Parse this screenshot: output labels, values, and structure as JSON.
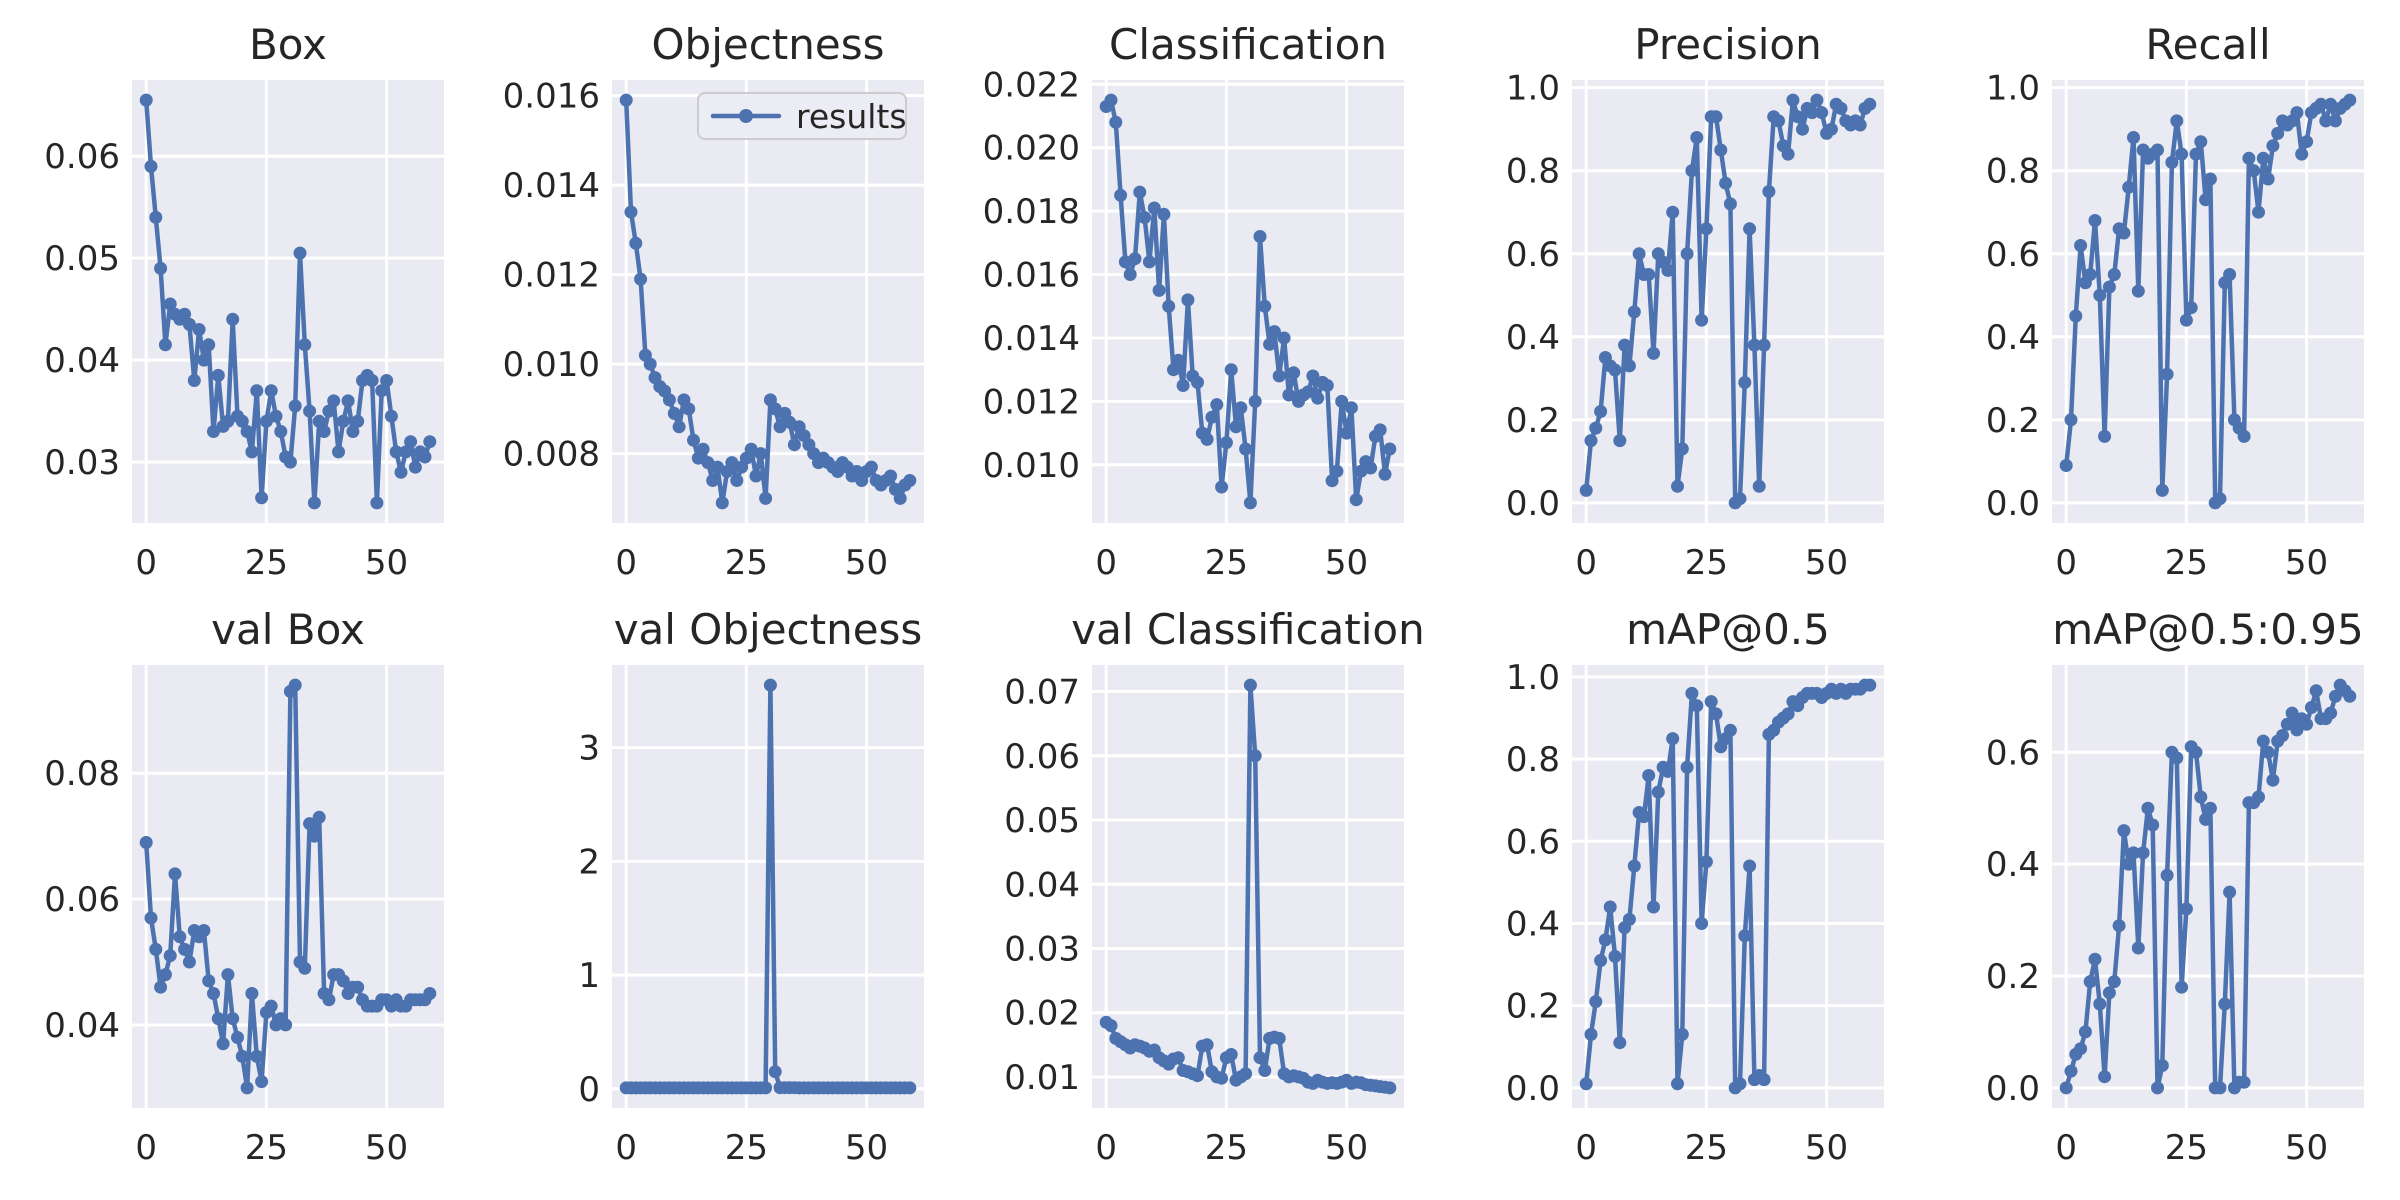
{
  "figure": {
    "background": "#ffffff",
    "plot_bg": "#eaeaf2",
    "grid_color": "#ffffff",
    "text_color": "#262626",
    "accent": "#4c72b0",
    "legend": {
      "label": "results",
      "bg": "#ececf4",
      "border": "#cccccc"
    }
  },
  "chart_data": [
    {
      "type": "line",
      "title": "Box",
      "legend_pos": null,
      "xticks": [
        0,
        25,
        50
      ],
      "xtick_labels": [
        "0",
        "25",
        "50"
      ],
      "yticks": [
        0.03,
        0.04,
        0.05,
        0.06
      ],
      "ytick_labels": [
        "0.03",
        "0.04",
        "0.05",
        "0.06"
      ],
      "xlim": [
        -2.95,
        61.95
      ],
      "values": [
        0.0655,
        0.059,
        0.054,
        0.049,
        0.0415,
        0.0455,
        0.0445,
        0.044,
        0.0445,
        0.0435,
        0.038,
        0.043,
        0.04,
        0.0415,
        0.033,
        0.0385,
        0.0335,
        0.034,
        0.044,
        0.0345,
        0.034,
        0.033,
        0.031,
        0.037,
        0.0265,
        0.034,
        0.037,
        0.0345,
        0.033,
        0.0305,
        0.03,
        0.0355,
        0.0505,
        0.0415,
        0.035,
        0.026,
        0.034,
        0.033,
        0.035,
        0.036,
        0.031,
        0.034,
        0.036,
        0.033,
        0.034,
        0.038,
        0.0385,
        0.038,
        0.026,
        0.037,
        0.038,
        0.0345,
        0.031,
        0.029,
        0.031,
        0.032,
        0.0295,
        0.031,
        0.0305,
        0.032
      ]
    },
    {
      "type": "line",
      "title": "Objectness",
      "legend_pos": "upper-right",
      "legend_label": "results",
      "xticks": [
        0,
        25,
        50
      ],
      "xtick_labels": [
        "0",
        "25",
        "50"
      ],
      "yticks": [
        0.008,
        0.01,
        0.012,
        0.014,
        0.016
      ],
      "ytick_labels": [
        "0.008",
        "0.010",
        "0.012",
        "0.014",
        "0.016"
      ],
      "xlim": [
        -2.95,
        61.95
      ],
      "values": [
        0.0159,
        0.0134,
        0.0127,
        0.0119,
        0.0102,
        0.01,
        0.0097,
        0.0095,
        0.0094,
        0.0092,
        0.0089,
        0.0086,
        0.0092,
        0.009,
        0.0083,
        0.0079,
        0.0081,
        0.0078,
        0.0074,
        0.0077,
        0.0069,
        0.0076,
        0.0078,
        0.0074,
        0.0077,
        0.0079,
        0.0081,
        0.0075,
        0.008,
        0.007,
        0.0092,
        0.009,
        0.0086,
        0.0089,
        0.0087,
        0.0082,
        0.0086,
        0.0084,
        0.0082,
        0.008,
        0.0078,
        0.0079,
        0.0078,
        0.0077,
        0.0076,
        0.0078,
        0.0077,
        0.0075,
        0.0076,
        0.0074,
        0.0076,
        0.0077,
        0.0074,
        0.0073,
        0.0074,
        0.0075,
        0.0072,
        0.007,
        0.0073,
        0.0074
      ]
    },
    {
      "type": "line",
      "title": "Classification",
      "legend_pos": null,
      "xticks": [
        0,
        25,
        50
      ],
      "xtick_labels": [
        "0",
        "25",
        "50"
      ],
      "yticks": [
        0.01,
        0.012,
        0.014,
        0.016,
        0.018,
        0.02,
        0.022
      ],
      "ytick_labels": [
        "0.010",
        "0.012",
        "0.014",
        "0.016",
        "0.018",
        "0.020",
        "0.022"
      ],
      "xlim": [
        -2.95,
        61.95
      ],
      "values": [
        0.0213,
        0.0215,
        0.0208,
        0.0185,
        0.0164,
        0.016,
        0.0165,
        0.0186,
        0.0178,
        0.0164,
        0.0181,
        0.0155,
        0.0179,
        0.015,
        0.013,
        0.0133,
        0.0125,
        0.0152,
        0.0128,
        0.0126,
        0.011,
        0.0108,
        0.0115,
        0.0119,
        0.0093,
        0.0107,
        0.013,
        0.0112,
        0.0118,
        0.0105,
        0.0088,
        0.012,
        0.0172,
        0.015,
        0.0138,
        0.0142,
        0.0128,
        0.014,
        0.0122,
        0.0129,
        0.012,
        0.0122,
        0.0123,
        0.0128,
        0.0121,
        0.0126,
        0.0125,
        0.0095,
        0.0098,
        0.012,
        0.011,
        0.0118,
        0.0089,
        0.0098,
        0.0101,
        0.0099,
        0.0109,
        0.0111,
        0.0097,
        0.0105
      ]
    },
    {
      "type": "line",
      "title": "Precision",
      "legend_pos": null,
      "xticks": [
        0,
        25,
        50
      ],
      "xtick_labels": [
        "0",
        "25",
        "50"
      ],
      "yticks": [
        0.0,
        0.2,
        0.4,
        0.6,
        0.8,
        1.0
      ],
      "ytick_labels": [
        "0.0",
        "0.2",
        "0.4",
        "0.6",
        "0.8",
        "1.0"
      ],
      "xlim": [
        -2.95,
        61.95
      ],
      "values": [
        0.03,
        0.15,
        0.18,
        0.22,
        0.35,
        0.33,
        0.32,
        0.15,
        0.38,
        0.33,
        0.46,
        0.6,
        0.55,
        0.55,
        0.36,
        0.6,
        0.58,
        0.56,
        0.7,
        0.04,
        0.13,
        0.6,
        0.8,
        0.88,
        0.44,
        0.66,
        0.93,
        0.93,
        0.85,
        0.77,
        0.72,
        0.0,
        0.01,
        0.29,
        0.66,
        0.38,
        0.04,
        0.38,
        0.75,
        0.93,
        0.92,
        0.86,
        0.84,
        0.97,
        0.93,
        0.9,
        0.95,
        0.94,
        0.97,
        0.94,
        0.89,
        0.9,
        0.96,
        0.95,
        0.92,
        0.91,
        0.92,
        0.91,
        0.95,
        0.96
      ]
    },
    {
      "type": "line",
      "title": "Recall",
      "legend_pos": null,
      "xticks": [
        0,
        25,
        50
      ],
      "xtick_labels": [
        "0",
        "25",
        "50"
      ],
      "yticks": [
        0.0,
        0.2,
        0.4,
        0.6,
        0.8,
        1.0
      ],
      "ytick_labels": [
        "0.0",
        "0.2",
        "0.4",
        "0.6",
        "0.8",
        "1.0"
      ],
      "xlim": [
        -2.95,
        61.95
      ],
      "values": [
        0.09,
        0.2,
        0.45,
        0.62,
        0.53,
        0.55,
        0.68,
        0.5,
        0.16,
        0.52,
        0.55,
        0.66,
        0.65,
        0.76,
        0.88,
        0.51,
        0.85,
        0.83,
        0.84,
        0.85,
        0.03,
        0.31,
        0.82,
        0.92,
        0.84,
        0.44,
        0.47,
        0.84,
        0.87,
        0.73,
        0.78,
        0.0,
        0.01,
        0.53,
        0.55,
        0.2,
        0.18,
        0.16,
        0.83,
        0.8,
        0.7,
        0.83,
        0.78,
        0.86,
        0.89,
        0.92,
        0.91,
        0.92,
        0.94,
        0.84,
        0.87,
        0.94,
        0.95,
        0.96,
        0.92,
        0.96,
        0.92,
        0.95,
        0.96,
        0.97
      ]
    },
    {
      "type": "line",
      "title": "val Box",
      "legend_pos": null,
      "xticks": [
        0,
        25,
        50
      ],
      "xtick_labels": [
        "0",
        "25",
        "50"
      ],
      "yticks": [
        0.04,
        0.06,
        0.08
      ],
      "ytick_labels": [
        "0.04",
        "0.06",
        "0.08"
      ],
      "xlim": [
        -2.95,
        61.95
      ],
      "values": [
        0.069,
        0.057,
        0.052,
        0.046,
        0.048,
        0.051,
        0.064,
        0.054,
        0.052,
        0.05,
        0.055,
        0.054,
        0.055,
        0.047,
        0.045,
        0.041,
        0.037,
        0.048,
        0.041,
        0.038,
        0.035,
        0.03,
        0.045,
        0.035,
        0.031,
        0.042,
        0.043,
        0.04,
        0.041,
        0.04,
        0.093,
        0.094,
        0.05,
        0.049,
        0.072,
        0.07,
        0.073,
        0.045,
        0.044,
        0.048,
        0.048,
        0.047,
        0.045,
        0.046,
        0.046,
        0.044,
        0.043,
        0.043,
        0.043,
        0.044,
        0.044,
        0.043,
        0.044,
        0.043,
        0.043,
        0.044,
        0.044,
        0.044,
        0.044,
        0.045
      ]
    },
    {
      "type": "line",
      "title": "val Objectness",
      "legend_pos": null,
      "xticks": [
        0,
        25,
        50
      ],
      "xtick_labels": [
        "0",
        "25",
        "50"
      ],
      "yticks": [
        0,
        1,
        2,
        3
      ],
      "ytick_labels": [
        "0",
        "1",
        "2",
        "3"
      ],
      "xlim": [
        -2.95,
        61.95
      ],
      "values": [
        0.008,
        0.008,
        0.008,
        0.008,
        0.008,
        0.008,
        0.008,
        0.008,
        0.008,
        0.008,
        0.008,
        0.008,
        0.008,
        0.008,
        0.008,
        0.008,
        0.008,
        0.008,
        0.008,
        0.008,
        0.008,
        0.008,
        0.008,
        0.008,
        0.008,
        0.008,
        0.008,
        0.008,
        0.008,
        0.008,
        3.55,
        0.15,
        0.009,
        0.009,
        0.009,
        0.009,
        0.008,
        0.008,
        0.008,
        0.008,
        0.008,
        0.008,
        0.008,
        0.008,
        0.008,
        0.008,
        0.008,
        0.008,
        0.008,
        0.008,
        0.008,
        0.008,
        0.008,
        0.008,
        0.008,
        0.008,
        0.008,
        0.008,
        0.008,
        0.008
      ]
    },
    {
      "type": "line",
      "title": "val Classification",
      "legend_pos": null,
      "xticks": [
        0,
        25,
        50
      ],
      "xtick_labels": [
        "0",
        "25",
        "50"
      ],
      "yticks": [
        0.01,
        0.02,
        0.03,
        0.04,
        0.05,
        0.06,
        0.07
      ],
      "ytick_labels": [
        "0.01",
        "0.02",
        "0.03",
        "0.04",
        "0.05",
        "0.06",
        "0.07"
      ],
      "xlim": [
        -2.95,
        61.95
      ],
      "values": [
        0.0185,
        0.018,
        0.016,
        0.0155,
        0.015,
        0.0145,
        0.015,
        0.0148,
        0.0145,
        0.014,
        0.0142,
        0.013,
        0.0125,
        0.012,
        0.0128,
        0.013,
        0.011,
        0.0108,
        0.0105,
        0.0102,
        0.0148,
        0.015,
        0.0108,
        0.01,
        0.0098,
        0.013,
        0.0135,
        0.0095,
        0.01,
        0.0105,
        0.071,
        0.06,
        0.013,
        0.011,
        0.016,
        0.0162,
        0.016,
        0.0105,
        0.01,
        0.0102,
        0.01,
        0.0098,
        0.0092,
        0.009,
        0.0095,
        0.0092,
        0.009,
        0.0091,
        0.009,
        0.0092,
        0.0095,
        0.009,
        0.0092,
        0.0091,
        0.0088,
        0.0087,
        0.0086,
        0.0085,
        0.0084,
        0.0083
      ]
    },
    {
      "type": "line",
      "title": "mAP@0.5",
      "legend_pos": null,
      "xticks": [
        0,
        25,
        50
      ],
      "xtick_labels": [
        "0",
        "25",
        "50"
      ],
      "yticks": [
        0.0,
        0.2,
        0.4,
        0.6,
        0.8,
        1.0
      ],
      "ytick_labels": [
        "0.0",
        "0.2",
        "0.4",
        "0.6",
        "0.8",
        "1.0"
      ],
      "xlim": [
        -2.95,
        61.95
      ],
      "values": [
        0.01,
        0.13,
        0.21,
        0.31,
        0.36,
        0.44,
        0.32,
        0.11,
        0.39,
        0.41,
        0.54,
        0.67,
        0.66,
        0.76,
        0.44,
        0.72,
        0.78,
        0.77,
        0.85,
        0.01,
        0.13,
        0.78,
        0.96,
        0.93,
        0.4,
        0.55,
        0.94,
        0.91,
        0.83,
        0.85,
        0.87,
        0.0,
        0.01,
        0.37,
        0.54,
        0.02,
        0.03,
        0.02,
        0.86,
        0.87,
        0.89,
        0.9,
        0.91,
        0.94,
        0.93,
        0.95,
        0.96,
        0.96,
        0.96,
        0.95,
        0.96,
        0.97,
        0.96,
        0.97,
        0.96,
        0.97,
        0.97,
        0.97,
        0.98,
        0.98
      ]
    },
    {
      "type": "line",
      "title": "mAP@0.5:0.95",
      "legend_pos": null,
      "xticks": [
        0,
        25,
        50
      ],
      "xtick_labels": [
        "0",
        "25",
        "50"
      ],
      "yticks": [
        0.0,
        0.2,
        0.4,
        0.6
      ],
      "ytick_labels": [
        "0.0",
        "0.2",
        "0.4",
        "0.6"
      ],
      "xlim": [
        -2.95,
        61.95
      ],
      "values": [
        0.0,
        0.03,
        0.06,
        0.07,
        0.1,
        0.19,
        0.23,
        0.15,
        0.02,
        0.17,
        0.19,
        0.29,
        0.46,
        0.4,
        0.42,
        0.25,
        0.42,
        0.5,
        0.47,
        0.0,
        0.04,
        0.38,
        0.6,
        0.59,
        0.18,
        0.32,
        0.61,
        0.6,
        0.52,
        0.48,
        0.5,
        0.0,
        0.0,
        0.15,
        0.35,
        0.0,
        0.01,
        0.01,
        0.51,
        0.51,
        0.52,
        0.62,
        0.6,
        0.55,
        0.62,
        0.63,
        0.65,
        0.67,
        0.64,
        0.66,
        0.65,
        0.68,
        0.71,
        0.66,
        0.66,
        0.67,
        0.7,
        0.72,
        0.71,
        0.7
      ]
    }
  ]
}
